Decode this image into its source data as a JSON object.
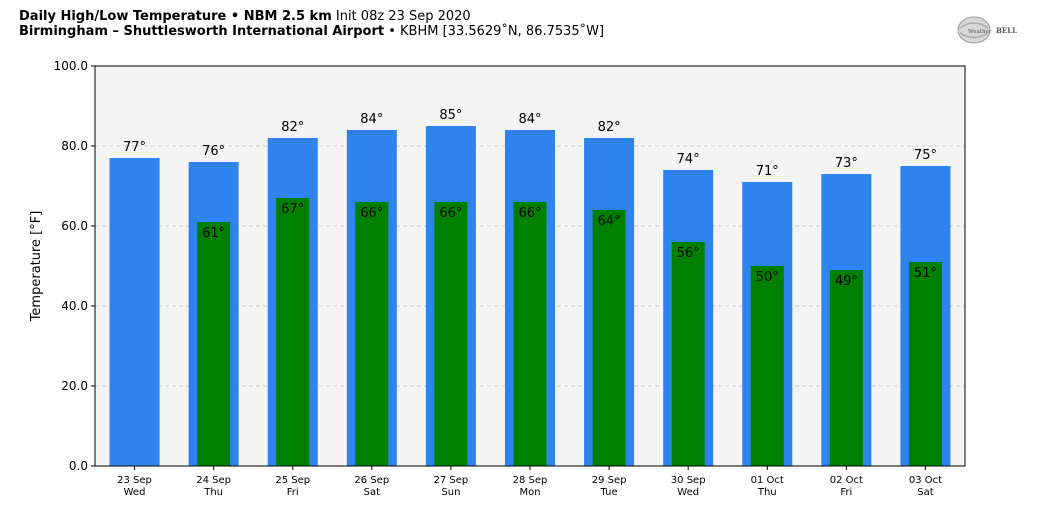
{
  "header": {
    "line1_bold": "Daily High/Low Temperature • NBM 2.5 km",
    "line1_rest": "Init 08z 23 Sep 2020",
    "line2_bold": "Birmingham – Shuttlesworth International Airport",
    "line2_rest": "• KBHM [33.5629˚N, 86.7535˚W]"
  },
  "logo": {
    "text_weather": "Weather",
    "text_bell": "BELL"
  },
  "colors": {
    "high_bar": "#2e83ef",
    "low_bar": "#008000",
    "plot_bg": "#f4f4f4",
    "grid": "#cccccc"
  },
  "chart_data": {
    "type": "bar",
    "ylabel": "Temperature [°F]",
    "ylim": [
      0,
      100
    ],
    "yticks": [
      "0.0",
      "20.0",
      "40.0",
      "60.0",
      "80.0",
      "100.0"
    ],
    "ytick_values": [
      0,
      20,
      40,
      60,
      80,
      100
    ],
    "grid": true,
    "categories": [
      {
        "date": "23 Sep",
        "day": "Wed"
      },
      {
        "date": "24 Sep",
        "day": "Thu"
      },
      {
        "date": "25 Sep",
        "day": "Fri"
      },
      {
        "date": "26 Sep",
        "day": "Sat"
      },
      {
        "date": "27 Sep",
        "day": "Sun"
      },
      {
        "date": "28 Sep",
        "day": "Mon"
      },
      {
        "date": "29 Sep",
        "day": "Tue"
      },
      {
        "date": "30 Sep",
        "day": "Wed"
      },
      {
        "date": "01 Oct",
        "day": "Thu"
      },
      {
        "date": "02 Oct",
        "day": "Fri"
      },
      {
        "date": "03 Oct",
        "day": "Sat"
      }
    ],
    "series": [
      {
        "values": [
          77,
          76,
          82,
          84,
          85,
          84,
          82,
          74,
          71,
          73,
          75
        ],
        "labels": [
          "77°",
          "76°",
          "82°",
          "84°",
          "85°",
          "84°",
          "82°",
          "74°",
          "71°",
          "73°",
          "75°"
        ]
      },
      {
        "values": [
          null,
          61,
          67,
          66,
          66,
          66,
          64,
          56,
          50,
          49,
          51
        ],
        "labels": [
          null,
          "61°",
          "67°",
          "66°",
          "66°",
          "66°",
          "64°",
          "56°",
          "50°",
          "49°",
          "51°"
        ]
      }
    ]
  }
}
